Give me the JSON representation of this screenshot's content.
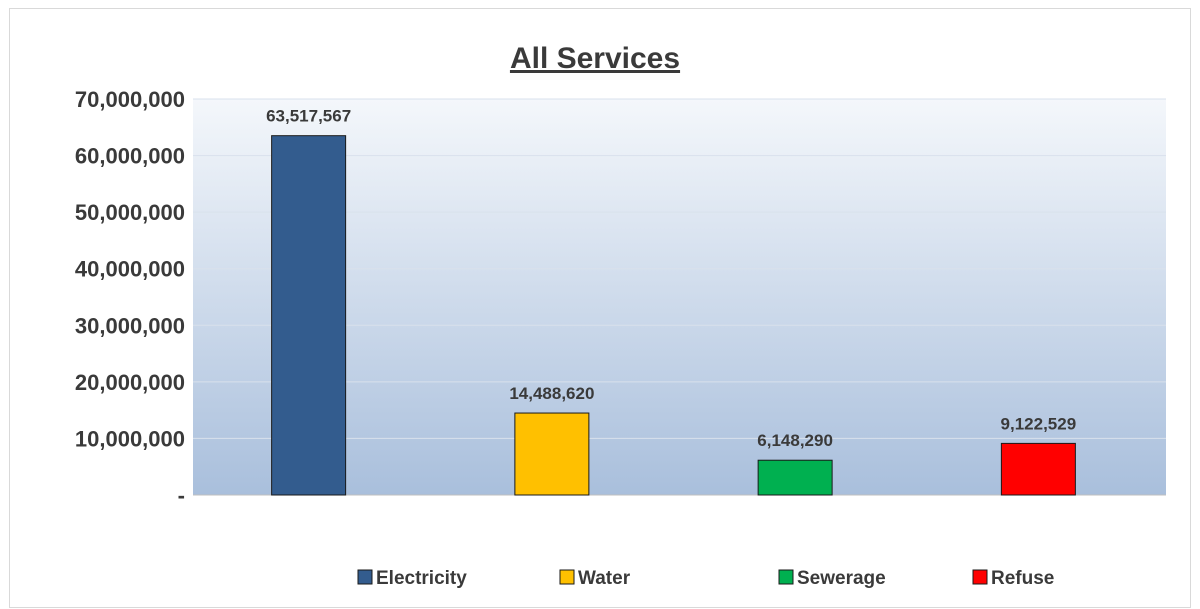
{
  "chart_data": {
    "type": "bar",
    "title": "All Services",
    "categories": [
      "Electricity",
      "Water",
      "Sewerage",
      "Refuse"
    ],
    "values": [
      63517567,
      14488620,
      6148290,
      9122529
    ],
    "value_labels": [
      "63,517,567",
      "14,488,620",
      "6,148,290",
      "9,122,529"
    ],
    "colors": [
      "#335c8e",
      "#ffc000",
      "#00b050",
      "#ff0000"
    ],
    "ylim": [
      0,
      70000000
    ],
    "yticks": [
      0,
      10000000,
      20000000,
      30000000,
      40000000,
      50000000,
      60000000,
      70000000
    ],
    "ytick_labels": [
      "-",
      "10,000,000",
      "20,000,000",
      "30,000,000",
      "40,000,000",
      "50,000,000",
      "60,000,000",
      "70,000,000"
    ],
    "xlabel": "",
    "ylabel": "",
    "grid": true,
    "legend": {
      "placement": "bottom",
      "entries": [
        "Electricity",
        "Water",
        "Sewerage",
        "Refuse"
      ]
    }
  }
}
